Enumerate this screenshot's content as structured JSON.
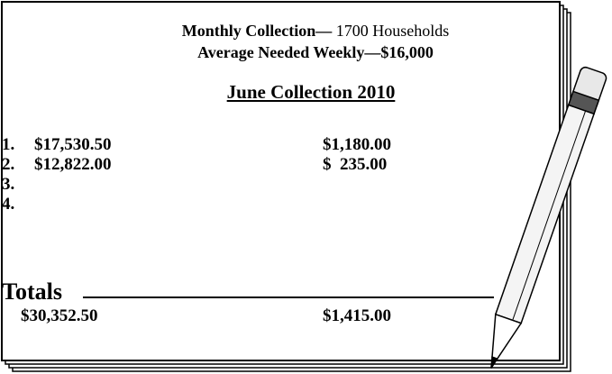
{
  "header": {
    "title_bold": "Monthly Collection—",
    "title_rest": "1700 Households",
    "subtitle": "Average Needed Weekly—$16,000"
  },
  "section_title": "June Collection 2010",
  "rows": [
    {
      "number": "1.",
      "col1": "$17,530.50",
      "col2": "$1,180.00"
    },
    {
      "number": "2.",
      "col1": "$12,822.00",
      "col2": "$  235.00"
    },
    {
      "number": "3."
    },
    {
      "number": "4."
    }
  ],
  "totals": {
    "label": "Totals",
    "col1": "$30,352.50",
    "col2": "$1,415.00"
  }
}
